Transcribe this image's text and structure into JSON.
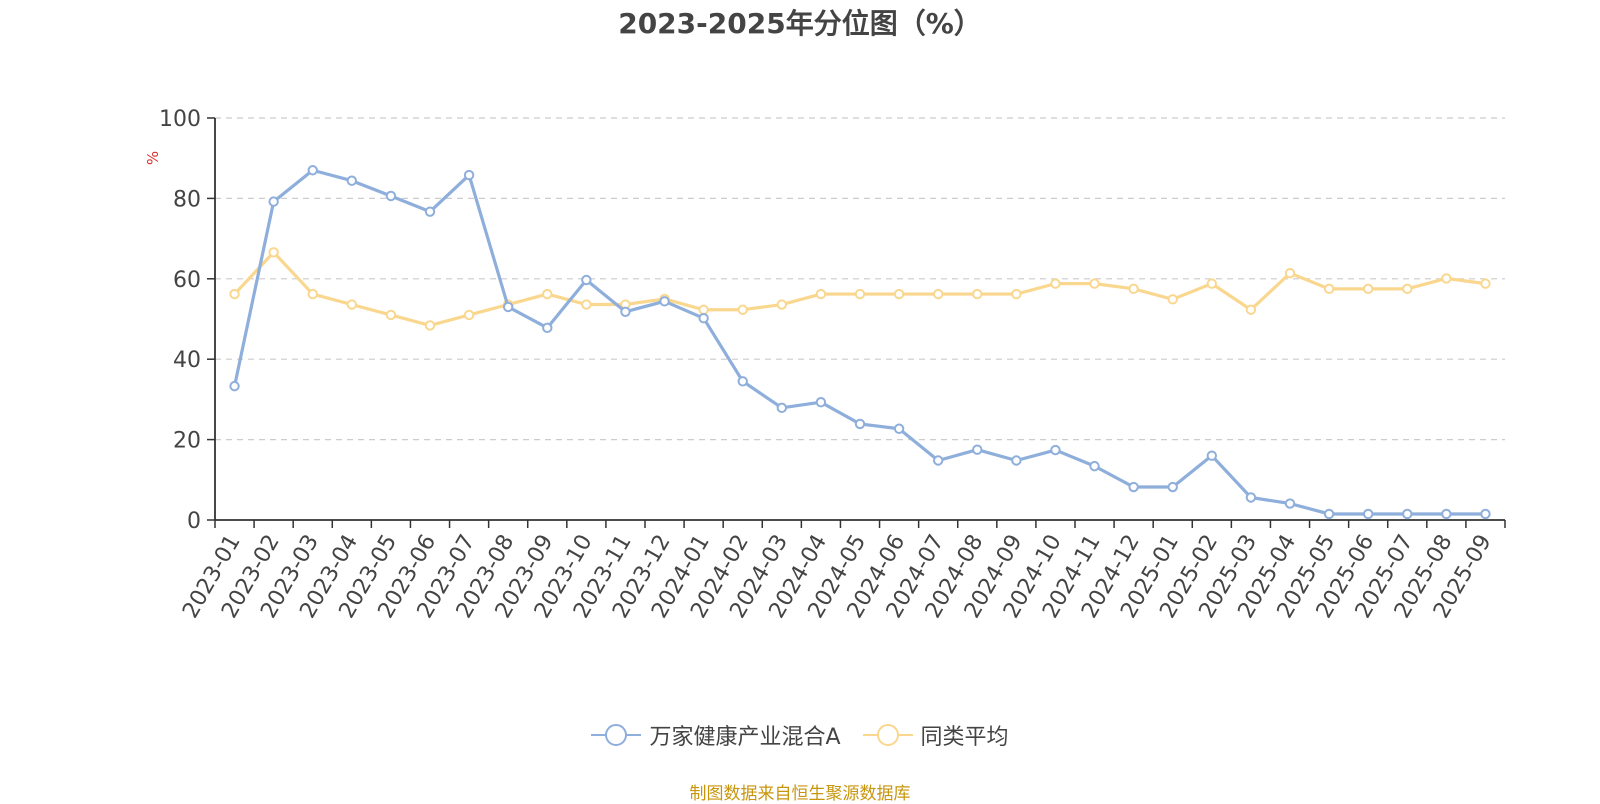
{
  "chart_data": {
    "type": "line",
    "title": "2023-2025年分位图（%）",
    "ylabel": "%",
    "xlabel": "",
    "ylim": [
      0,
      100
    ],
    "yticks": [
      0,
      20,
      40,
      60,
      80,
      100
    ],
    "grid": "horizontal-dashed",
    "legend_position": "bottom",
    "categories": [
      "2023-01",
      "2023-02",
      "2023-03",
      "2023-04",
      "2023-05",
      "2023-06",
      "2023-07",
      "2023-08",
      "2023-09",
      "2023-10",
      "2023-11",
      "2023-12",
      "2024-01",
      "2024-02",
      "2024-03",
      "2024-04",
      "2024-05",
      "2024-06",
      "2024-07",
      "2024-08",
      "2024-09",
      "2024-10",
      "2024-11",
      "2024-12",
      "2025-01",
      "2025-02",
      "2025-03",
      "2025-04",
      "2025-05",
      "2025-06",
      "2025-07",
      "2025-08",
      "2025-09"
    ],
    "series": [
      {
        "name": "万家健康产业混合A",
        "color": "#8eaedb",
        "values": [
          33.3,
          79.2,
          87.0,
          84.4,
          80.6,
          76.7,
          85.8,
          53.0,
          47.8,
          59.7,
          51.8,
          54.4,
          50.2,
          34.5,
          27.9,
          29.3,
          23.9,
          22.7,
          14.8,
          17.5,
          14.8,
          17.4,
          13.4,
          8.2,
          8.2,
          16.0,
          5.6,
          4.1,
          1.5,
          1.5,
          1.5,
          1.5,
          1.5
        ]
      },
      {
        "name": "同类平均",
        "color": "#fad78f",
        "values": [
          56.2,
          66.6,
          56.2,
          53.6,
          51.0,
          48.4,
          51.0,
          53.6,
          56.2,
          53.6,
          53.6,
          55.0,
          52.3,
          52.3,
          53.6,
          56.2,
          56.2,
          56.2,
          56.2,
          56.2,
          56.2,
          58.8,
          58.8,
          57.5,
          54.9,
          58.8,
          52.3,
          61.4,
          57.5,
          57.5,
          57.5,
          60.1,
          58.8
        ]
      }
    ]
  },
  "footer": {
    "source": "制图数据来自恒生聚源数据库"
  }
}
